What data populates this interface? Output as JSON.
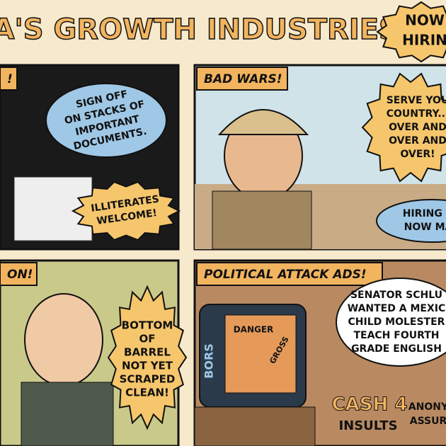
{
  "header": {
    "title": "CA'S GROWTH INDUSTRIES",
    "badge": [
      "NOW",
      "HIRIN"
    ]
  },
  "panels": [
    {
      "label": "!",
      "bubble": [
        "SIGN OFF",
        "ON STACKS OF",
        "IMPORTANT",
        "DOCUMENTS."
      ],
      "burst": [
        "ILLITERATES",
        "WELCOME!"
      ]
    },
    {
      "label": "BAD WARS!",
      "burst": [
        "SERVE YOU",
        "COUNTRY...",
        "OVER AND",
        "OVER AND",
        "OVER!"
      ],
      "bubble": [
        "HIRING G",
        "NOW MA"
      ]
    },
    {
      "label": "ON!",
      "burst": [
        "BOTTOM",
        "OF",
        "BARREL",
        "NOT YET",
        "SCRAPED",
        "CLEAN!"
      ]
    },
    {
      "label": "POLITICAL ATTACK ADS!",
      "bubble": [
        "SENATOR SCHLU",
        "WANTED A MEXIC",
        "CHILD MOLESTER",
        "TEACH FOURTH",
        "GRADE ENGLISH"
      ],
      "tv": {
        "words": [
          "DANGER",
          "GROSS"
        ],
        "brand": "BORS"
      },
      "cash": [
        "CASH 4",
        "INSULTS"
      ],
      "corner": [
        "ANONY",
        "ASSUR"
      ]
    }
  ]
}
